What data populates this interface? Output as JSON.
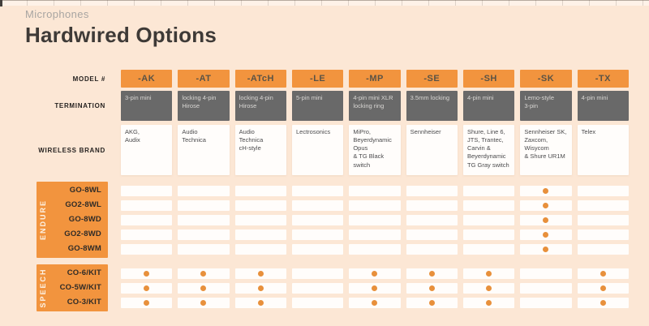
{
  "header": {
    "eyebrow": "Microphones",
    "title": "Hardwired Options"
  },
  "row_labels": {
    "model": "MODEL #",
    "termination": "TERMINATION",
    "brand": "WIRELESS BRAND"
  },
  "chart_data": {
    "type": "table",
    "title": "Hardwired Options",
    "subtitle": "Microphones",
    "columns": [
      {
        "model": "-AK",
        "termination": "3-pin mini",
        "brands": "AKG,\nAudix"
      },
      {
        "model": "-AT",
        "termination": "locking 4-pin\nHirose",
        "brands": "Audio\nTechnica"
      },
      {
        "model": "-ATcH",
        "termination": "locking 4-pin\nHirose",
        "brands": "Audio\nTechnica\ncH-style"
      },
      {
        "model": "-LE",
        "termination": "5-pin mini",
        "brands": "Lectrosonics"
      },
      {
        "model": "-MP",
        "termination": "4-pin mini XLR\nlocking ring",
        "brands": "MiPro,\nBeyerdynamic\nOpus\n& TG Black\nswitch"
      },
      {
        "model": "-SE",
        "termination": "3.5mm locking",
        "brands": "Sennheiser"
      },
      {
        "model": "-SH",
        "termination": "4-pin mini",
        "brands": "Shure, Line 6,\nJTS, Trantec,\nCarvin &\nBeyerdynamic\nTG Gray switch"
      },
      {
        "model": "-SK",
        "termination": "Lemo-style\n3-pin",
        "brands": "Sennheiser SK,\nZaxcom,\nWisycom\n& Shure UR1M"
      },
      {
        "model": "-TX",
        "termination": "4-pin mini",
        "brands": "Telex"
      }
    ],
    "row_groups": [
      {
        "name": "ENDURE",
        "rows": [
          {
            "label": "GO-8WL",
            "dots": [
              "-SK"
            ]
          },
          {
            "label": "GO2-8WL",
            "dots": [
              "-SK"
            ]
          },
          {
            "label": "GO-8WD",
            "dots": [
              "-SK"
            ]
          },
          {
            "label": "GO2-8WD",
            "dots": [
              "-SK"
            ]
          },
          {
            "label": "GO-8WM",
            "dots": [
              "-SK"
            ]
          }
        ]
      },
      {
        "name": "SPEECH",
        "rows": [
          {
            "label": "CO-6/KIT",
            "dots": [
              "-AK",
              "-AT",
              "-ATcH",
              "-MP",
              "-SE",
              "-SH",
              "-TX"
            ]
          },
          {
            "label": "CO-5W/KIT",
            "dots": [
              "-AK",
              "-AT",
              "-ATcH",
              "-MP",
              "-SE",
              "-SH",
              "-TX"
            ]
          },
          {
            "label": "CO-3/KIT",
            "dots": [
              "-AK",
              "-AT",
              "-ATcH",
              "-MP",
              "-SE",
              "-SH",
              "-TX"
            ]
          }
        ]
      }
    ]
  },
  "colors": {
    "background": "#FCE7D5",
    "accent_orange": "#F2943E",
    "dot_orange": "#E8903B",
    "termination_gray": "#696969",
    "cell_white": "#FFFDFB",
    "title_dark": "#3E3A37",
    "eyebrow_gray": "#A8A5A2"
  }
}
